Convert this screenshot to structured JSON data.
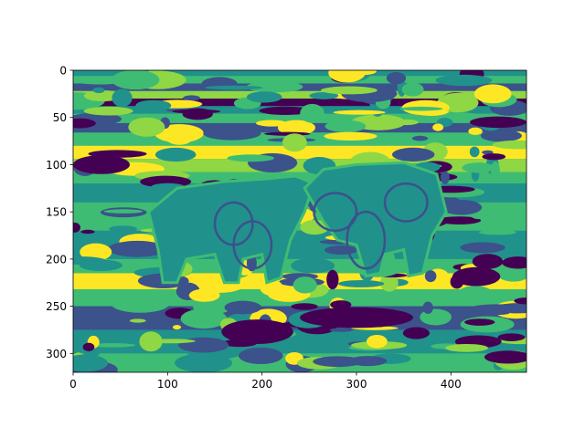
{
  "chart_data": {
    "type": "heatmap",
    "title": "",
    "xlabel": "",
    "ylabel": "",
    "image_size": {
      "columns": 480,
      "rows": 320
    },
    "xlim": [
      0,
      480
    ],
    "ylim": [
      320,
      0
    ],
    "x_ticks": [
      0,
      100,
      200,
      300,
      400
    ],
    "y_ticks": [
      0,
      50,
      100,
      150,
      200,
      250,
      300
    ],
    "colormap": "viridis (quantized)",
    "level_colors": [
      "#440154",
      "#3b528b",
      "#21918c",
      "#3fbc73",
      "#8fd744",
      "#fde725"
    ],
    "colorbar": false,
    "content": "posterized image of two elephants facing each other in grassland"
  }
}
